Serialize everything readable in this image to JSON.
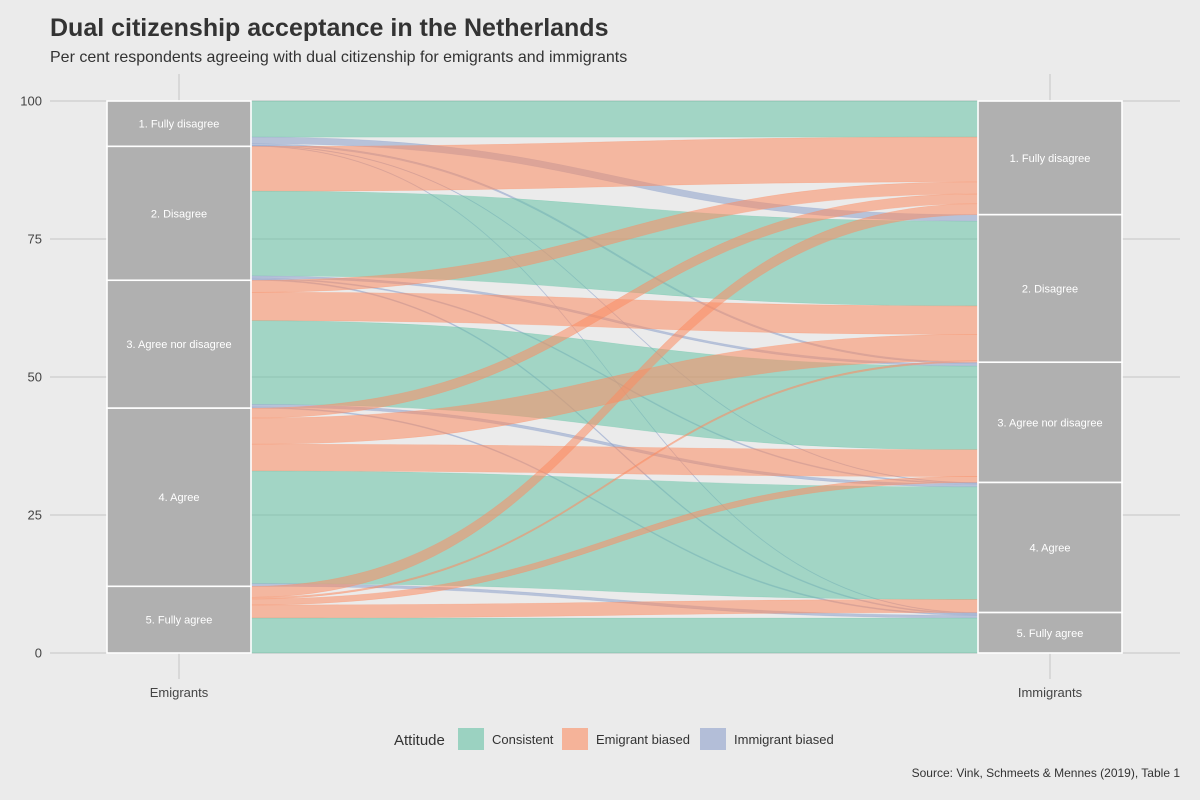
{
  "chart_data": {
    "type": "alluvial",
    "title": "Dual citizenship acceptance in the Netherlands",
    "subtitle": "Per cent respondents agreeing with dual citizenship for emigrants and immigrants",
    "caption": "Source: Vink, Schmeets & Mennes (2019), Table 1",
    "ylim": [
      0,
      100
    ],
    "y_ticks": [
      "0",
      "25",
      "50",
      "75",
      "100"
    ],
    "axes": [
      "Emigrants",
      "Immigrants"
    ],
    "categories": [
      "1. Fully disagree",
      "2. Disagree",
      "3. Agree nor disagree",
      "4. Agree",
      "5. Fully agree"
    ],
    "legend": {
      "title": "Attitude",
      "position": "bottom",
      "entries": [
        {
          "name": "Consistent",
          "color": "#66c2a5"
        },
        {
          "name": "Emigrant biased",
          "color": "#fc8d62"
        },
        {
          "name": "Immigrant biased",
          "color": "#8da0cb"
        }
      ]
    },
    "box_color": "#b0b0b0",
    "flows": [
      {
        "from": 1,
        "to": 1,
        "value": 6.6,
        "type": "Consistent"
      },
      {
        "from": 1,
        "to": 2,
        "value": 1.2,
        "type": "Immigrant biased"
      },
      {
        "from": 1,
        "to": 3,
        "value": 0.3,
        "type": "Immigrant biased"
      },
      {
        "from": 1,
        "to": 4,
        "value": 0.1,
        "type": "Immigrant biased"
      },
      {
        "from": 1,
        "to": 5,
        "value": 0.1,
        "type": "Immigrant biased"
      },
      {
        "from": 2,
        "to": 1,
        "value": 8.2,
        "type": "Emigrant biased"
      },
      {
        "from": 2,
        "to": 2,
        "value": 15.5,
        "type": "Consistent"
      },
      {
        "from": 2,
        "to": 3,
        "value": 0.4,
        "type": "Immigrant biased"
      },
      {
        "from": 2,
        "to": 4,
        "value": 0.2,
        "type": "Immigrant biased"
      },
      {
        "from": 2,
        "to": 5,
        "value": 0.2,
        "type": "Immigrant biased"
      },
      {
        "from": 3,
        "to": 1,
        "value": 2.2,
        "type": "Emigrant biased"
      },
      {
        "from": 3,
        "to": 2,
        "value": 5.2,
        "type": "Emigrant biased"
      },
      {
        "from": 3,
        "to": 3,
        "value": 15.3,
        "type": "Consistent"
      },
      {
        "from": 3,
        "to": 4,
        "value": 0.5,
        "type": "Immigrant biased"
      },
      {
        "from": 3,
        "to": 5,
        "value": 0.2,
        "type": "Immigrant biased"
      },
      {
        "from": 4,
        "to": 1,
        "value": 1.8,
        "type": "Emigrant biased"
      },
      {
        "from": 4,
        "to": 2,
        "value": 4.8,
        "type": "Emigrant biased"
      },
      {
        "from": 4,
        "to": 3,
        "value": 4.9,
        "type": "Emigrant biased"
      },
      {
        "from": 4,
        "to": 4,
        "value": 20.6,
        "type": "Consistent"
      },
      {
        "from": 4,
        "to": 5,
        "value": 0.5,
        "type": "Immigrant biased"
      },
      {
        "from": 5,
        "to": 1,
        "value": 2.0,
        "type": "Emigrant biased"
      },
      {
        "from": 5,
        "to": 2,
        "value": 0.3,
        "type": "Emigrant biased"
      },
      {
        "from": 5,
        "to": 3,
        "value": 1.1,
        "type": "Emigrant biased"
      },
      {
        "from": 5,
        "to": 4,
        "value": 2.4,
        "type": "Emigrant biased"
      },
      {
        "from": 5,
        "to": 5,
        "value": 6.4,
        "type": "Consistent"
      }
    ]
  }
}
